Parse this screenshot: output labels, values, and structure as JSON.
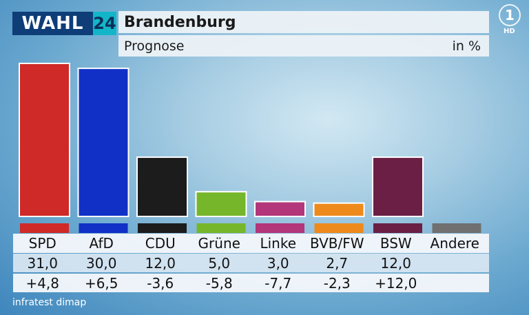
{
  "header": {
    "logo_text": "WAHL",
    "logo_year": "24",
    "title": "Brandenburg",
    "subtitle": "Prognose",
    "unit": "in %",
    "channel_logo": "1",
    "channel_hd": "HD"
  },
  "source": "infratest dimap",
  "chart_data": {
    "type": "bar",
    "title": "Brandenburg",
    "subtitle": "Prognose",
    "unit": "in %",
    "categories": [
      "SPD",
      "AfD",
      "CDU",
      "Grüne",
      "Linke",
      "BVB/FW",
      "BSW",
      "Andere"
    ],
    "values": [
      31.0,
      30.0,
      12.0,
      5.0,
      3.0,
      2.7,
      12.0,
      null
    ],
    "value_labels": [
      "31,0",
      "30,0",
      "12,0",
      "5,0",
      "3,0",
      "2,7",
      "12,0",
      ""
    ],
    "diff_labels": [
      "+4,8",
      "+6,5",
      "-3,6",
      "-5,8",
      "-7,7",
      "-2,3",
      "+12,0",
      ""
    ],
    "colors": [
      "#cf2a27",
      "#1130c6",
      "#1c1c1c",
      "#76b62a",
      "#b3357a",
      "#ee8a1c",
      "#6b1f44",
      "#707070"
    ],
    "ylim": [
      0,
      33
    ],
    "grid": false
  }
}
